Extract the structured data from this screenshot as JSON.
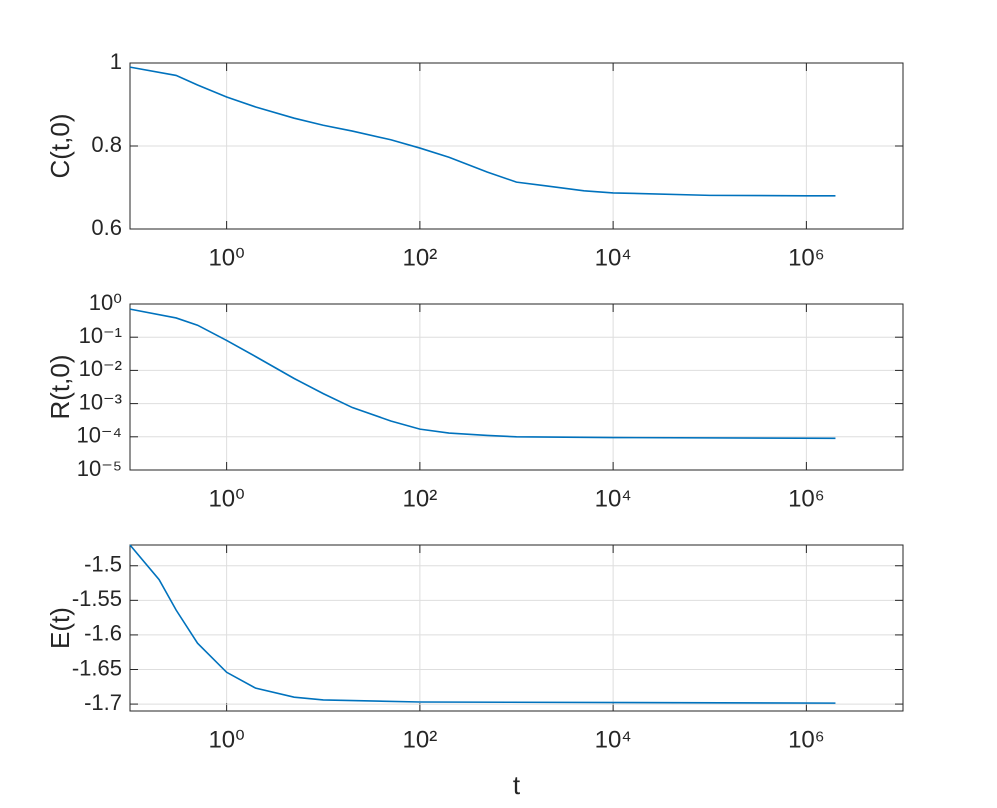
{
  "chart_data": [
    {
      "type": "line",
      "ylabel": "C(t,0)",
      "log_x": true,
      "log_y": false,
      "grid": true,
      "color": "#0072bd",
      "x": [
        0.1,
        0.3,
        0.5,
        1,
        2,
        5,
        10,
        20,
        50,
        100,
        200,
        500,
        1000,
        2000,
        5000,
        10000,
        100000,
        1000000,
        2000000
      ],
      "values": [
        0.99,
        0.97,
        0.947,
        0.918,
        0.894,
        0.867,
        0.85,
        0.836,
        0.815,
        0.795,
        0.773,
        0.737,
        0.713,
        0.704,
        0.692,
        0.687,
        0.681,
        0.68,
        0.68
      ],
      "xlim": [
        0.1,
        10000000
      ],
      "xticks": [
        {
          "value": 1,
          "label": "10⁰"
        },
        {
          "value": 100,
          "label": "10²"
        },
        {
          "value": 10000,
          "label": "10⁴"
        },
        {
          "value": 1000000,
          "label": "10⁶"
        }
      ],
      "ylim": [
        0.6,
        1
      ],
      "yticks": [
        0.6,
        0.8,
        1
      ]
    },
    {
      "type": "line",
      "ylabel": "R(t,0)",
      "log_x": true,
      "log_y": true,
      "grid": true,
      "color": "#0072bd",
      "x": [
        0.1,
        0.3,
        0.5,
        1,
        2,
        5,
        10,
        20,
        50,
        100,
        200,
        500,
        1000,
        10000,
        2000000
      ],
      "values": [
        0.7,
        0.38,
        0.23,
        0.08,
        0.026,
        0.0057,
        0.002,
        0.00076,
        0.0003,
        0.00017,
        0.00013,
        0.00011,
        0.0001,
        9.5e-05,
        9e-05
      ],
      "xlim": [
        0.1,
        10000000
      ],
      "xticks": [
        {
          "value": 1,
          "label": "10⁰"
        },
        {
          "value": 100,
          "label": "10²"
        },
        {
          "value": 10000,
          "label": "10⁴"
        },
        {
          "value": 1000000,
          "label": "10⁶"
        }
      ],
      "ylim": [
        1e-05,
        1
      ],
      "yticks": [
        {
          "value": 1e-05,
          "label": "10⁻⁵"
        },
        {
          "value": 0.0001,
          "label": "10⁻⁴"
        },
        {
          "value": 0.001,
          "label": "10⁻³"
        },
        {
          "value": 0.01,
          "label": "10⁻²"
        },
        {
          "value": 0.1,
          "label": "10⁻¹"
        },
        {
          "value": 1,
          "label": "10⁰"
        }
      ]
    },
    {
      "type": "line",
      "ylabel": "E(t)",
      "xlabel": "t",
      "log_x": true,
      "log_y": false,
      "grid": true,
      "color": "#0072bd",
      "x": [
        0.1,
        0.2,
        0.3,
        0.5,
        1,
        2,
        5,
        10,
        100,
        2000000
      ],
      "values": [
        -1.47,
        -1.52,
        -1.564,
        -1.612,
        -1.654,
        -1.677,
        -1.69,
        -1.694,
        -1.697,
        -1.6986
      ],
      "xlim": [
        0.1,
        10000000
      ],
      "xticks": [
        {
          "value": 1,
          "label": "10⁰"
        },
        {
          "value": 100,
          "label": "10²"
        },
        {
          "value": 10000,
          "label": "10⁴"
        },
        {
          "value": 1000000,
          "label": "10⁶"
        }
      ],
      "ylim": [
        -1.71,
        -1.47
      ],
      "yticks": [
        -1.7,
        -1.65,
        -1.6,
        -1.55,
        -1.5
      ]
    }
  ]
}
